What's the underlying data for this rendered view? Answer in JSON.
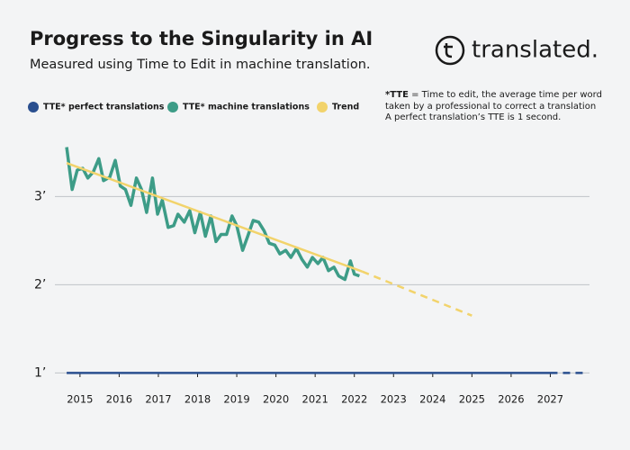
{
  "chart_data": {
    "type": "line",
    "title": "Progress to the Singularity in AI",
    "subtitle": "Measured using Time to Edit in machine translation.",
    "logo": "translated.",
    "note": [
      "*TTE",
      " = Time to edit, the average time per word",
      "taken by a professional to correct a translation",
      "A perfect translation’s TTE is 1 second."
    ],
    "xlim": [
      2014.36,
      2028.0
    ],
    "xticks": [
      2015,
      2016,
      2017,
      2018,
      2019,
      2020,
      2021,
      2022,
      2023,
      2024,
      2025,
      2026,
      2027
    ],
    "ylim": [
      0.8,
      3.8
    ],
    "yticks": [
      {
        "value": 1,
        "label": "1’"
      },
      {
        "value": 2,
        "label": "2’"
      },
      {
        "value": 3,
        "label": "3’"
      }
    ],
    "grid": true,
    "series": [
      {
        "name": "TTE* perfect translations",
        "color": "#2a4f8f",
        "x": [
          2014.66,
          2027,
          2027.9
        ],
        "values": [
          1,
          1,
          1
        ],
        "line_styles": [
          "solid",
          "dashed"
        ]
      },
      {
        "name": "TTE* machine translations",
        "color": "#3d9c87",
        "x": [
          2014.66,
          2014.8,
          2014.93,
          2015.07,
          2015.2,
          2015.34,
          2015.48,
          2015.6,
          2015.76,
          2015.9,
          2016.03,
          2016.16,
          2016.3,
          2016.44,
          2016.57,
          2016.7,
          2016.85,
          2016.98,
          2017.1,
          2017.25,
          2017.39,
          2017.5,
          2017.66,
          2017.8,
          2017.93,
          2018.07,
          2018.2,
          2018.34,
          2018.47,
          2018.6,
          2018.74,
          2018.88,
          2019.0,
          2019.15,
          2019.28,
          2019.42,
          2019.56,
          2019.7,
          2019.83,
          2019.97,
          2020.1,
          2020.25,
          2020.38,
          2020.52,
          2020.66,
          2020.8,
          2020.93,
          2021.07,
          2021.2,
          2021.34,
          2021.48,
          2021.6,
          2021.76,
          2021.9,
          2022.0,
          2022.13
        ],
        "values": [
          3.56,
          3.08,
          3.3,
          3.32,
          3.21,
          3.28,
          3.43,
          3.18,
          3.22,
          3.41,
          3.12,
          3.08,
          2.9,
          3.21,
          3.08,
          2.82,
          3.21,
          2.8,
          2.96,
          2.65,
          2.67,
          2.8,
          2.71,
          2.84,
          2.59,
          2.82,
          2.55,
          2.78,
          2.49,
          2.57,
          2.57,
          2.78,
          2.67,
          2.39,
          2.55,
          2.73,
          2.71,
          2.61,
          2.47,
          2.45,
          2.35,
          2.39,
          2.31,
          2.41,
          2.29,
          2.2,
          2.31,
          2.24,
          2.31,
          2.16,
          2.2,
          2.1,
          2.06,
          2.27,
          2.12,
          2.1
        ]
      },
      {
        "name": "Trend",
        "color": "#f2d36b",
        "x": [
          2014.66,
          2022.2,
          2025
        ],
        "values": [
          3.38,
          2.15,
          1.65
        ],
        "line_styles": [
          "solid",
          "dashed"
        ]
      }
    ]
  }
}
